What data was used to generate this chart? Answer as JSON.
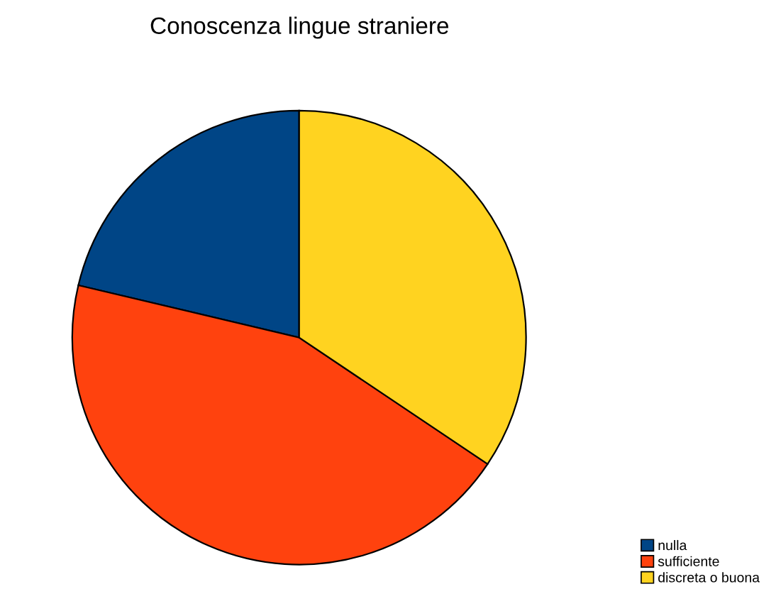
{
  "chart_data": {
    "type": "pie",
    "title": "Conoscenza lingue straniere",
    "categories": [
      "nulla",
      "sufficiente",
      "discreta o buona"
    ],
    "values": [
      21.3,
      44.3,
      34.4
    ],
    "colors": [
      "#004586",
      "#ff420e",
      "#ffd320"
    ],
    "legend": "bottom right"
  }
}
